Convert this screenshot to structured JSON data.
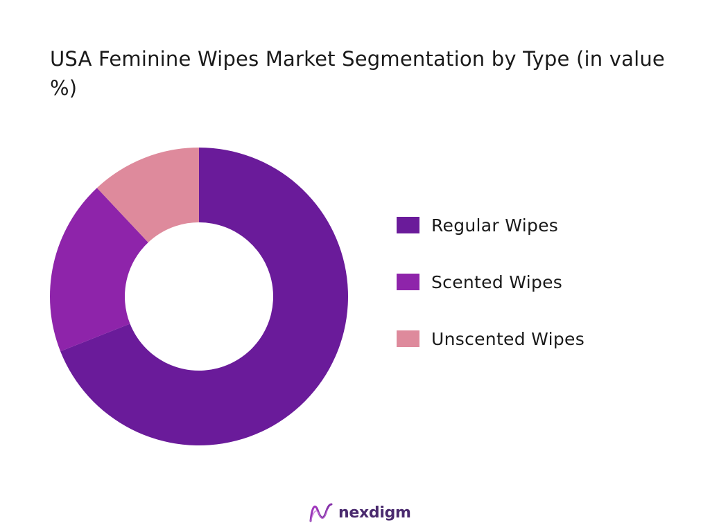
{
  "chart_data": {
    "type": "pie",
    "variant": "donut",
    "title": "USA Feminine Wipes Market Segmentation by Type (in value %)",
    "categories": [
      "Regular Wipes",
      "Scented Wipes",
      "Unscented Wipes"
    ],
    "values": [
      69,
      19,
      12
    ],
    "unit": "%",
    "colors": [
      "#6a1b9a",
      "#8e24aa",
      "#de8a9c"
    ],
    "start_angle": "top (12 o'clock)",
    "direction": "clockwise",
    "legend_position": "right"
  },
  "brand": {
    "name": "nexdigm",
    "logo_icon": "nexdigm-wave-logo"
  }
}
